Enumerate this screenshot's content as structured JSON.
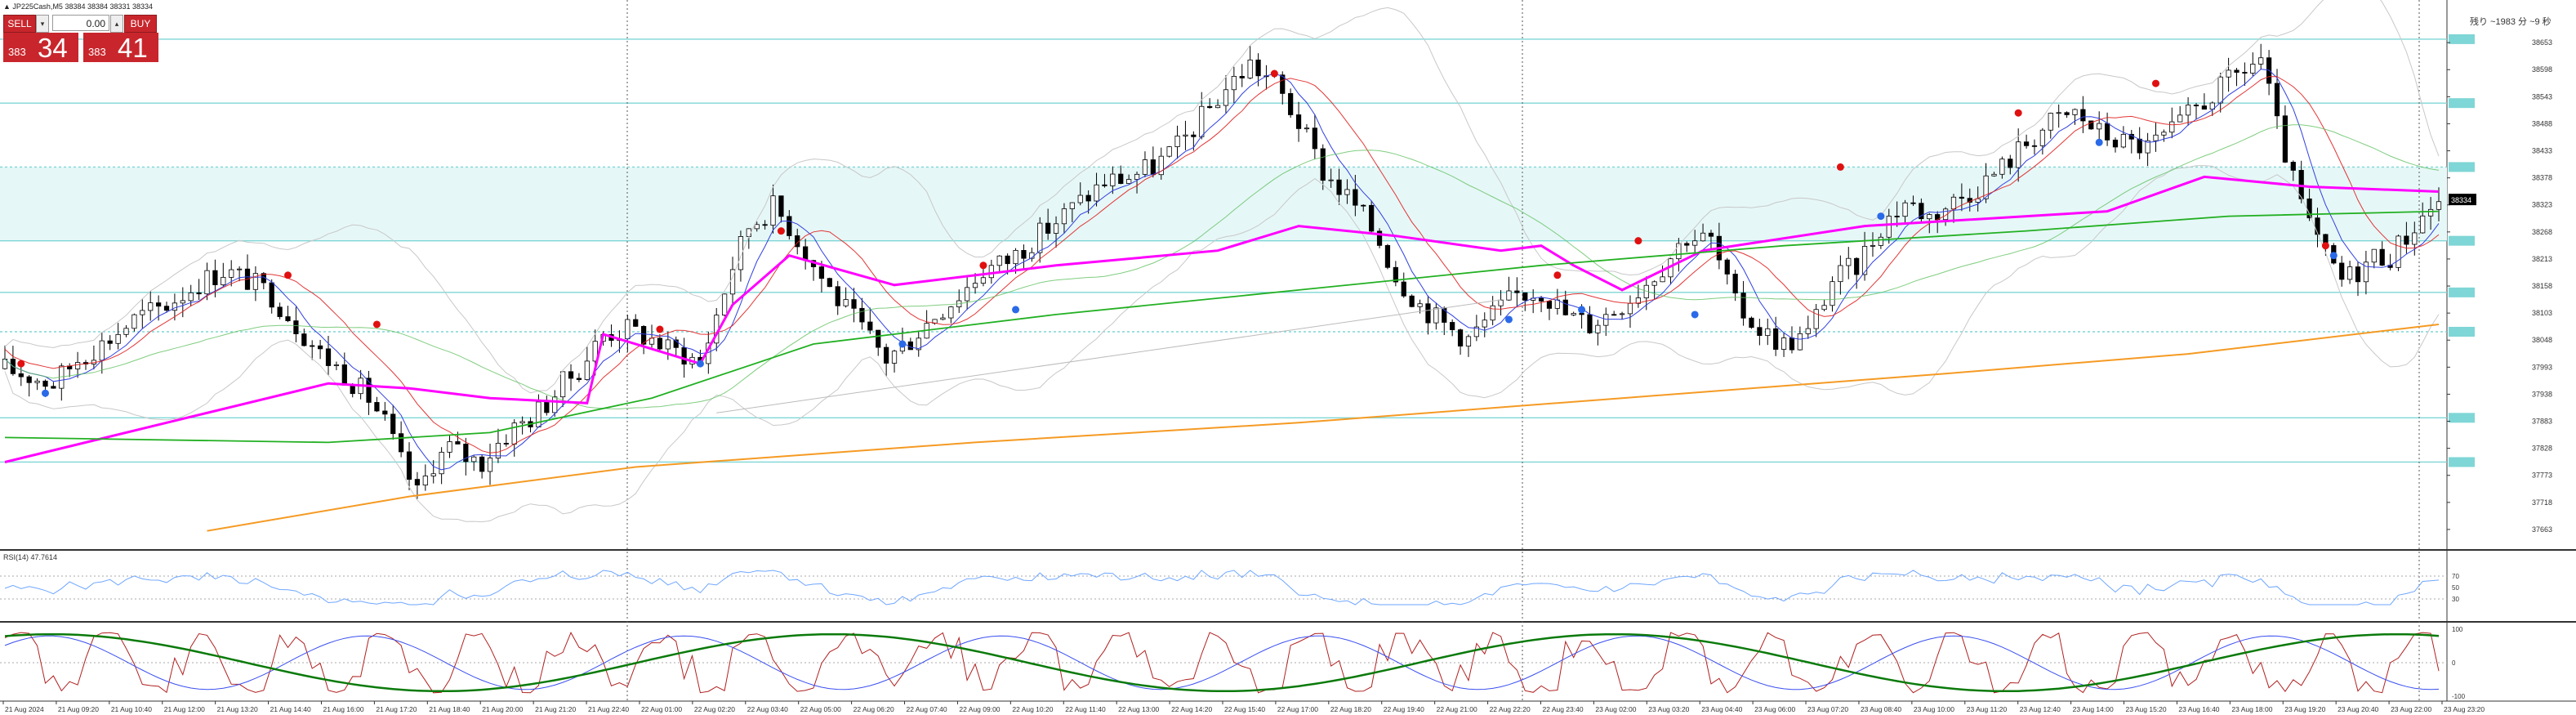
{
  "symbol_line": "▲ JP225Cash,M5  38384 38384 38331 38334",
  "trade_panel": {
    "sell_label": "SELL",
    "buy_label": "BUY",
    "lot_value": "0.00",
    "sell_price_prefix": "383",
    "sell_price_big": "34",
    "buy_price_prefix": "383",
    "buy_price_big": "41"
  },
  "countdown_text": "残り ~1983 分 ~9 秒",
  "colors": {
    "background": "#ffffff",
    "zone_fill": "#e6f7f7",
    "level_line": "#7fd6d6",
    "vwap": "#ff00ff",
    "ma_green": "#22b022",
    "ma_orange": "#f59a23",
    "rsi_line": "#6ea6ff",
    "osc_green": "#0a7a0a",
    "osc_red": "#b02020",
    "osc_blue": "#3a4ff0",
    "pivot_red": "#e01010",
    "pivot_blue": "#2a6ae8"
  },
  "chart_data": [
    {
      "type": "candlestick",
      "timeframe": "M5",
      "symbol": "JP225Cash",
      "ylim": [
        37623,
        38733
      ],
      "y_tick_labels": [
        "38653",
        "38598",
        "38543",
        "38488",
        "38433",
        "38378",
        "38323",
        "38268",
        "38213",
        "38158",
        "38103",
        "38048",
        "37993",
        "37938",
        "37883",
        "37828",
        "37773",
        "37718",
        "37663"
      ],
      "current_price": 38334,
      "x_tick_labels": [
        "21 Aug 2024",
        "21 Aug 09:20",
        "21 Aug 10:40",
        "21 Aug 12:00",
        "21 Aug 13:20",
        "21 Aug 14:40",
        "21 Aug 16:00",
        "21 Aug 17:20",
        "21 Aug 18:40",
        "21 Aug 20:00",
        "21 Aug 21:20",
        "21 Aug 22:40",
        "22 Aug 01:00",
        "22 Aug 02:20",
        "22 Aug 03:40",
        "22 Aug 05:00",
        "22 Aug 06:20",
        "22 Aug 07:40",
        "22 Aug 09:00",
        "22 Aug 10:20",
        "22 Aug 11:40",
        "22 Aug 13:00",
        "22 Aug 14:20",
        "22 Aug 15:40",
        "22 Aug 17:00",
        "22 Aug 18:20",
        "22 Aug 19:40",
        "22 Aug 21:00",
        "22 Aug 22:20",
        "22 Aug 23:40",
        "23 Aug 02:00",
        "23 Aug 03:20",
        "23 Aug 04:40",
        "23 Aug 06:00",
        "23 Aug 07:20",
        "23 Aug 08:40",
        "23 Aug 10:00",
        "23 Aug 11:20",
        "23 Aug 12:40",
        "23 Aug 14:00",
        "23 Aug 15:20",
        "23 Aug 16:40",
        "23 Aug 18:00",
        "23 Aug 19:20",
        "23 Aug 20:40",
        "23 Aug 22:00",
        "23 Aug 23:20"
      ],
      "price_path": [
        [
          0,
          37990
        ],
        [
          3,
          37975
        ],
        [
          6,
          37960
        ],
        [
          9,
          38010
        ],
        [
          12,
          38040
        ],
        [
          16,
          38090
        ],
        [
          20,
          38120
        ],
        [
          24,
          38165
        ],
        [
          27,
          38190
        ],
        [
          30,
          38170
        ],
        [
          33,
          38140
        ],
        [
          36,
          38080
        ],
        [
          39,
          38020
        ],
        [
          42,
          37980
        ],
        [
          45,
          37930
        ],
        [
          47,
          37880
        ],
        [
          49,
          37800
        ],
        [
          51,
          37735
        ],
        [
          53,
          37800
        ],
        [
          55,
          37830
        ],
        [
          57,
          37810
        ],
        [
          59,
          37800
        ],
        [
          61,
          37840
        ],
        [
          63,
          37870
        ],
        [
          65,
          37890
        ],
        [
          67,
          37920
        ],
        [
          69,
          37960
        ],
        [
          71,
          37990
        ],
        [
          74,
          38060
        ],
        [
          77,
          38070
        ],
        [
          80,
          38050
        ],
        [
          82,
          38030
        ],
        [
          84,
          38020
        ],
        [
          86,
          38000
        ],
        [
          88,
          38100
        ],
        [
          90,
          38200
        ],
        [
          92,
          38280
        ],
        [
          95,
          38320
        ],
        [
          97,
          38280
        ],
        [
          100,
          38200
        ],
        [
          103,
          38130
        ],
        [
          106,
          38070
        ],
        [
          109,
          38010
        ],
        [
          112,
          38050
        ],
        [
          115,
          38100
        ],
        [
          118,
          38140
        ],
        [
          121,
          38190
        ],
        [
          124,
          38210
        ],
        [
          127,
          38250
        ],
        [
          130,
          38290
        ],
        [
          133,
          38330
        ],
        [
          136,
          38370
        ],
        [
          139,
          38380
        ],
        [
          142,
          38400
        ],
        [
          145,
          38440
        ],
        [
          148,
          38500
        ],
        [
          151,
          38560
        ],
        [
          154,
          38610
        ],
        [
          157,
          38570
        ],
        [
          160,
          38490
        ],
        [
          163,
          38390
        ],
        [
          166,
          38340
        ],
        [
          168,
          38300
        ],
        [
          170,
          38250
        ],
        [
          172,
          38180
        ],
        [
          175,
          38120
        ],
        [
          178,
          38080
        ],
        [
          181,
          38050
        ],
        [
          184,
          38100
        ],
        [
          187,
          38140
        ],
        [
          190,
          38150
        ],
        [
          193,
          38100
        ],
        [
          196,
          38080
        ],
        [
          199,
          38110
        ],
        [
          202,
          38150
        ],
        [
          205,
          38200
        ],
        [
          208,
          38260
        ],
        [
          211,
          38250
        ],
        [
          214,
          38120
        ],
        [
          217,
          38070
        ],
        [
          220,
          38040
        ],
        [
          223,
          38060
        ],
        [
          226,
          38170
        ],
        [
          229,
          38200
        ],
        [
          232,
          38280
        ],
        [
          235,
          38330
        ],
        [
          238,
          38300
        ],
        [
          241,
          38330
        ],
        [
          244,
          38360
        ],
        [
          247,
          38400
        ],
        [
          250,
          38450
        ],
        [
          253,
          38490
        ],
        [
          256,
          38510
        ],
        [
          259,
          38470
        ],
        [
          262,
          38450
        ],
        [
          265,
          38440
        ],
        [
          268,
          38470
        ],
        [
          271,
          38520
        ],
        [
          274,
          38560
        ],
        [
          277,
          38600
        ],
        [
          279,
          38620
        ],
        [
          281,
          38480
        ],
        [
          283,
          38370
        ],
        [
          285,
          38280
        ],
        [
          287,
          38220
        ],
        [
          289,
          38170
        ],
        [
          291,
          38190
        ],
        [
          293,
          38220
        ],
        [
          295,
          38220
        ],
        [
          297,
          38260
        ],
        [
          299,
          38300
        ],
        [
          301,
          38334
        ]
      ],
      "indicator_lines": [
        {
          "name_key": "vwap",
          "values": [
            [
              0,
              37800
            ],
            [
              20,
              37880
            ],
            [
              40,
              37960
            ],
            [
              50,
              37950
            ],
            [
              60,
              37930
            ],
            [
              72,
              37920
            ],
            [
              74,
              38060
            ],
            [
              86,
              38000
            ],
            [
              90,
              38120
            ],
            [
              97,
              38220
            ],
            [
              110,
              38160
            ],
            [
              130,
              38200
            ],
            [
              150,
              38230
            ],
            [
              160,
              38280
            ],
            [
              172,
              38260
            ],
            [
              185,
              38230
            ],
            [
              190,
              38240
            ],
            [
              194,
              38200
            ],
            [
              200,
              38150
            ],
            [
              210,
              38230
            ],
            [
              230,
              38280
            ],
            [
              260,
              38310
            ],
            [
              272,
              38380
            ],
            [
              285,
              38360
            ],
            [
              301,
              38350
            ]
          ]
        },
        {
          "name_key": "ma_green",
          "values": [
            [
              0,
              37850
            ],
            [
              40,
              37840
            ],
            [
              60,
              37860
            ],
            [
              80,
              37930
            ],
            [
              100,
              38040
            ],
            [
              130,
              38100
            ],
            [
              160,
              38150
            ],
            [
              190,
              38200
            ],
            [
              220,
              38240
            ],
            [
              250,
              38270
            ],
            [
              275,
              38300
            ],
            [
              301,
              38310
            ]
          ]
        },
        {
          "name_key": "ma_orange",
          "values": [
            [
              25,
              37660
            ],
            [
              50,
              37730
            ],
            [
              78,
              37790
            ],
            [
              120,
              37840
            ],
            [
              160,
              37880
            ],
            [
              200,
              37930
            ],
            [
              240,
              37980
            ],
            [
              270,
              38020
            ],
            [
              301,
              38080
            ]
          ]
        }
      ],
      "horizontal_levels": [
        38660,
        38530,
        38400,
        38250,
        38145,
        38065,
        37890,
        37800
      ],
      "zone": [
        38250,
        38400
      ]
    },
    {
      "type": "line",
      "title": "RSI(14) 47.7614",
      "ylim": [
        0,
        100
      ],
      "y_tick_labels": [
        "70",
        "50",
        "30"
      ],
      "levels": [
        70,
        30
      ]
    },
    {
      "type": "line",
      "title": "",
      "ylim": [
        -100,
        100
      ],
      "y_tick_labels": [
        "100",
        "0",
        "-100"
      ]
    }
  ]
}
